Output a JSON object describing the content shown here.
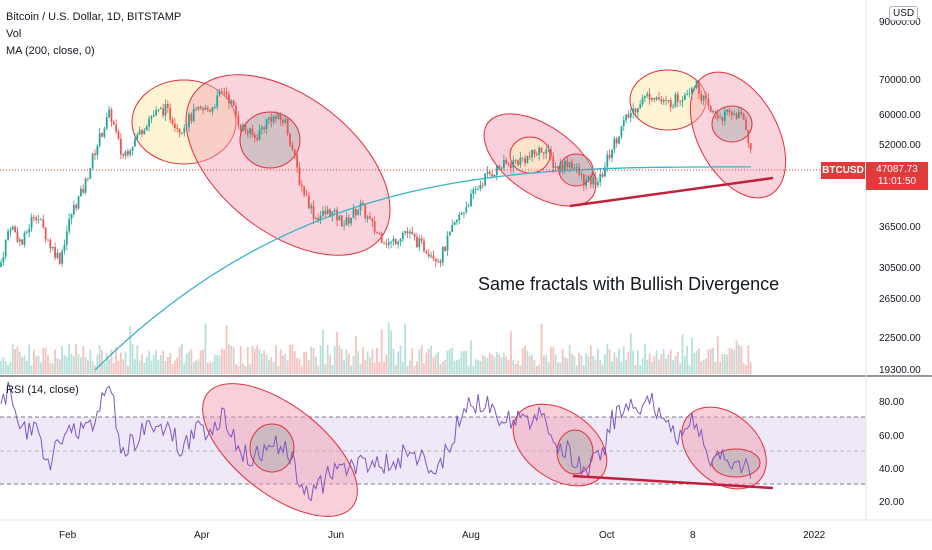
{
  "header": {
    "symbol_title": "Bitcoin / U.S. Dollar, 1D, BITSTAMP",
    "vol_label": "Vol",
    "ma_label": "MA (200, close, 0)",
    "rsi_label": "RSI (14, close)",
    "currency": "USD"
  },
  "annotation": "Same fractals with Bullish Divergence",
  "last_price": {
    "ticker": "BTCUSD",
    "price": "47087.73",
    "countdown": "11:01:50"
  },
  "price_axis": {
    "ticks": [
      "90000.00",
      "70000.00",
      "60000.00",
      "52000.00",
      "36500.00",
      "30500.00",
      "26500.00",
      "22500.00",
      "19300.00"
    ]
  },
  "rsi_axis": {
    "ticks": [
      "80.00",
      "60.00",
      "40.00",
      "20.00"
    ]
  },
  "time_axis": {
    "ticks": [
      "Feb",
      "Apr",
      "Jun",
      "Aug",
      "Oct",
      "8",
      "2022"
    ]
  },
  "colors": {
    "up": "#26a69a",
    "down": "#ef5350",
    "ma": "#3bb3c3",
    "rsi": "#7e57c2",
    "ellipse_fill": "#f4a0b4",
    "ellipse_light_fill": "#fdf0c0",
    "ellipse_grey": "#b0b0b0",
    "ellipse_stroke": "#e0303c",
    "trendline": "#c2203a",
    "price_tag": "#e03a3a"
  },
  "chart_data": {
    "type": "candlestick",
    "price_scale": "log",
    "price_range": [
      19300,
      90000
    ],
    "rsi_range": [
      14,
      86
    ],
    "rsi_levels": [
      70,
      50,
      30
    ],
    "series_keypoints": [
      {
        "x": 0,
        "p": 30000,
        "rsi": 72
      },
      {
        "x": 10,
        "p": 36000,
        "rsi": 80
      },
      {
        "x": 22,
        "p": 33000,
        "rsi": 60
      },
      {
        "x": 35,
        "p": 38000,
        "rsi": 58
      },
      {
        "x": 50,
        "p": 33000,
        "rsi": 45
      },
      {
        "x": 60,
        "p": 31000,
        "rsi": 52
      },
      {
        "x": 72,
        "p": 38000,
        "rsi": 60
      },
      {
        "x": 84,
        "p": 42000,
        "rsi": 62
      },
      {
        "x": 96,
        "p": 50000,
        "rsi": 66
      },
      {
        "x": 110,
        "p": 58000,
        "rsi": 82
      },
      {
        "x": 122,
        "p": 48000,
        "rsi": 50
      },
      {
        "x": 136,
        "p": 52000,
        "rsi": 55
      },
      {
        "x": 150,
        "p": 57000,
        "rsi": 62
      },
      {
        "x": 165,
        "p": 59000,
        "rsi": 62
      },
      {
        "x": 180,
        "p": 54000,
        "rsi": 52
      },
      {
        "x": 195,
        "p": 58000,
        "rsi": 58
      },
      {
        "x": 210,
        "p": 59000,
        "rsi": 60
      },
      {
        "x": 225,
        "p": 64000,
        "rsi": 68
      },
      {
        "x": 240,
        "p": 55000,
        "rsi": 48
      },
      {
        "x": 255,
        "p": 52000,
        "rsi": 45
      },
      {
        "x": 270,
        "p": 57000,
        "rsi": 52
      },
      {
        "x": 285,
        "p": 56000,
        "rsi": 54
      },
      {
        "x": 300,
        "p": 43000,
        "rsi": 32
      },
      {
        "x": 315,
        "p": 37000,
        "rsi": 28
      },
      {
        "x": 330,
        "p": 38000,
        "rsi": 38
      },
      {
        "x": 345,
        "p": 36000,
        "rsi": 40
      },
      {
        "x": 360,
        "p": 39000,
        "rsi": 42
      },
      {
        "x": 375,
        "p": 35000,
        "rsi": 44
      },
      {
        "x": 390,
        "p": 33000,
        "rsi": 42
      },
      {
        "x": 405,
        "p": 35000,
        "rsi": 48
      },
      {
        "x": 420,
        "p": 33000,
        "rsi": 44
      },
      {
        "x": 440,
        "p": 31000,
        "rsi": 40
      },
      {
        "x": 455,
        "p": 36000,
        "rsi": 60
      },
      {
        "x": 470,
        "p": 40000,
        "rsi": 74
      },
      {
        "x": 485,
        "p": 44000,
        "rsi": 72
      },
      {
        "x": 500,
        "p": 46000,
        "rsi": 66
      },
      {
        "x": 515,
        "p": 47000,
        "rsi": 64
      },
      {
        "x": 530,
        "p": 48000,
        "rsi": 66
      },
      {
        "x": 545,
        "p": 50000,
        "rsi": 70
      },
      {
        "x": 555,
        "p": 46000,
        "rsi": 50
      },
      {
        "x": 570,
        "p": 47000,
        "rsi": 48
      },
      {
        "x": 585,
        "p": 43000,
        "rsi": 40
      },
      {
        "x": 600,
        "p": 43500,
        "rsi": 45
      },
      {
        "x": 612,
        "p": 50000,
        "rsi": 64
      },
      {
        "x": 625,
        "p": 56000,
        "rsi": 70
      },
      {
        "x": 640,
        "p": 61000,
        "rsi": 72
      },
      {
        "x": 652,
        "p": 63000,
        "rsi": 76
      },
      {
        "x": 665,
        "p": 60000,
        "rsi": 60
      },
      {
        "x": 680,
        "p": 62000,
        "rsi": 58
      },
      {
        "x": 695,
        "p": 66000,
        "rsi": 66
      },
      {
        "x": 710,
        "p": 58000,
        "rsi": 46
      },
      {
        "x": 722,
        "p": 57000,
        "rsi": 44
      },
      {
        "x": 735,
        "p": 58000,
        "rsi": 45
      },
      {
        "x": 745,
        "p": 56000,
        "rsi": 40
      },
      {
        "x": 752,
        "p": 47087,
        "rsi": 33
      }
    ]
  }
}
